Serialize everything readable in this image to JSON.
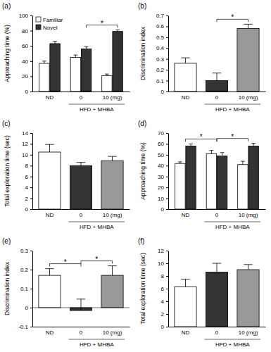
{
  "chart_data": [
    {
      "type": "bar",
      "title": "(a)",
      "categories": [
        "ND",
        "0",
        "10 (mg)"
      ],
      "series": [
        {
          "name": "Familiar",
          "color": "#ffffff",
          "values": [
            37,
            45,
            21
          ],
          "errors": [
            3,
            3,
            2
          ]
        },
        {
          "name": "Novel",
          "color": "#333333",
          "values": [
            63,
            56,
            79
          ],
          "errors": [
            3,
            3,
            2
          ]
        }
      ],
      "ylabel": "Approaching time (%)",
      "ylim": [
        0,
        100
      ],
      "yticks": [
        0,
        20,
        40,
        60,
        80,
        100
      ],
      "legend": "top-left",
      "x_group": {
        "label": "HFD + MHBA",
        "categories": [
          1,
          2
        ]
      },
      "annotations": [
        {
          "text": "*",
          "from": 1,
          "to": 2,
          "series": 1
        }
      ]
    },
    {
      "type": "bar",
      "title": "(b)",
      "categories": [
        "ND",
        "0",
        "10 (mg)"
      ],
      "values": [
        0.26,
        0.1,
        0.58
      ],
      "errors": [
        0.05,
        0.07,
        0.04
      ],
      "colors": [
        "#ffffff",
        "#333333",
        "#999999"
      ],
      "ylabel": "Discrimination index",
      "ylim": [
        0,
        0.7
      ],
      "yticks": [
        0,
        0.1,
        0.2,
        0.3,
        0.4,
        0.5,
        0.6,
        0.7
      ],
      "x_group": {
        "label": "HFD + MHBA",
        "categories": [
          1,
          2
        ]
      },
      "annotations": [
        {
          "text": "*",
          "from": 1,
          "to": 2
        }
      ]
    },
    {
      "type": "bar",
      "title": "(c)",
      "categories": [
        "ND",
        "0",
        "10 (mg)"
      ],
      "values": [
        10.5,
        8,
        8.9
      ],
      "errors": [
        1.4,
        0.6,
        0.8
      ],
      "colors": [
        "#ffffff",
        "#333333",
        "#999999"
      ],
      "ylabel": "Total exploration time (sec)",
      "ylim": [
        0,
        14
      ],
      "yticks": [
        0,
        2,
        4,
        6,
        8,
        10,
        12,
        14
      ],
      "x_group": {
        "label": "HFD + MHBA",
        "categories": [
          1,
          2
        ]
      }
    },
    {
      "type": "bar",
      "title": "(d)",
      "categories": [
        "ND",
        "0",
        "10 (mg)"
      ],
      "series": [
        {
          "name": "Familiar",
          "color": "#ffffff",
          "values": [
            42,
            51,
            41
          ],
          "errors": [
            1.5,
            3,
            3
          ]
        },
        {
          "name": "Novel",
          "color": "#333333",
          "values": [
            58,
            49,
            58
          ],
          "errors": [
            2,
            3,
            2.5
          ]
        }
      ],
      "ylabel": "Approaching time (%)",
      "ylim": [
        0,
        70
      ],
      "yticks": [
        0,
        10,
        20,
        30,
        40,
        50,
        60,
        70
      ],
      "x_group": {
        "label": "HFD + MHBA",
        "categories": [
          1,
          2
        ]
      },
      "annotations": [
        {
          "text": "*",
          "from": 0,
          "to": 1
        },
        {
          "text": "*",
          "from": 1,
          "to": 2
        }
      ]
    },
    {
      "type": "bar",
      "title": "(e)",
      "categories": [
        "ND",
        "0",
        "10 (mg)"
      ],
      "values": [
        0.17,
        -0.015,
        0.17
      ],
      "errors": [
        0.035,
        0.06,
        0.05
      ],
      "colors": [
        "#ffffff",
        "#333333",
        "#999999"
      ],
      "ylabel": "Discrimination index",
      "ylim": [
        -0.1,
        0.3
      ],
      "yticks": [
        -0.1,
        0,
        0.1,
        0.2,
        0.3
      ],
      "x_group": {
        "label": "HFD + MHBA",
        "categories": [
          1,
          2
        ]
      },
      "annotations": [
        {
          "text": "*",
          "from": 0,
          "to": 1
        },
        {
          "text": "*",
          "from": 1,
          "to": 2
        }
      ]
    },
    {
      "type": "bar",
      "title": "(f)",
      "categories": [
        "ND",
        "0",
        "10 (mg)"
      ],
      "values": [
        6.3,
        8.6,
        9
      ],
      "errors": [
        1.2,
        1.4,
        0.8
      ],
      "colors": [
        "#ffffff",
        "#333333",
        "#999999"
      ],
      "ylabel": "Total exploration time (sec)",
      "ylim": [
        0,
        12
      ],
      "yticks": [
        0,
        2,
        4,
        6,
        8,
        10,
        12
      ],
      "x_group": {
        "label": "HFD + MHBA",
        "categories": [
          1,
          2
        ]
      }
    }
  ]
}
